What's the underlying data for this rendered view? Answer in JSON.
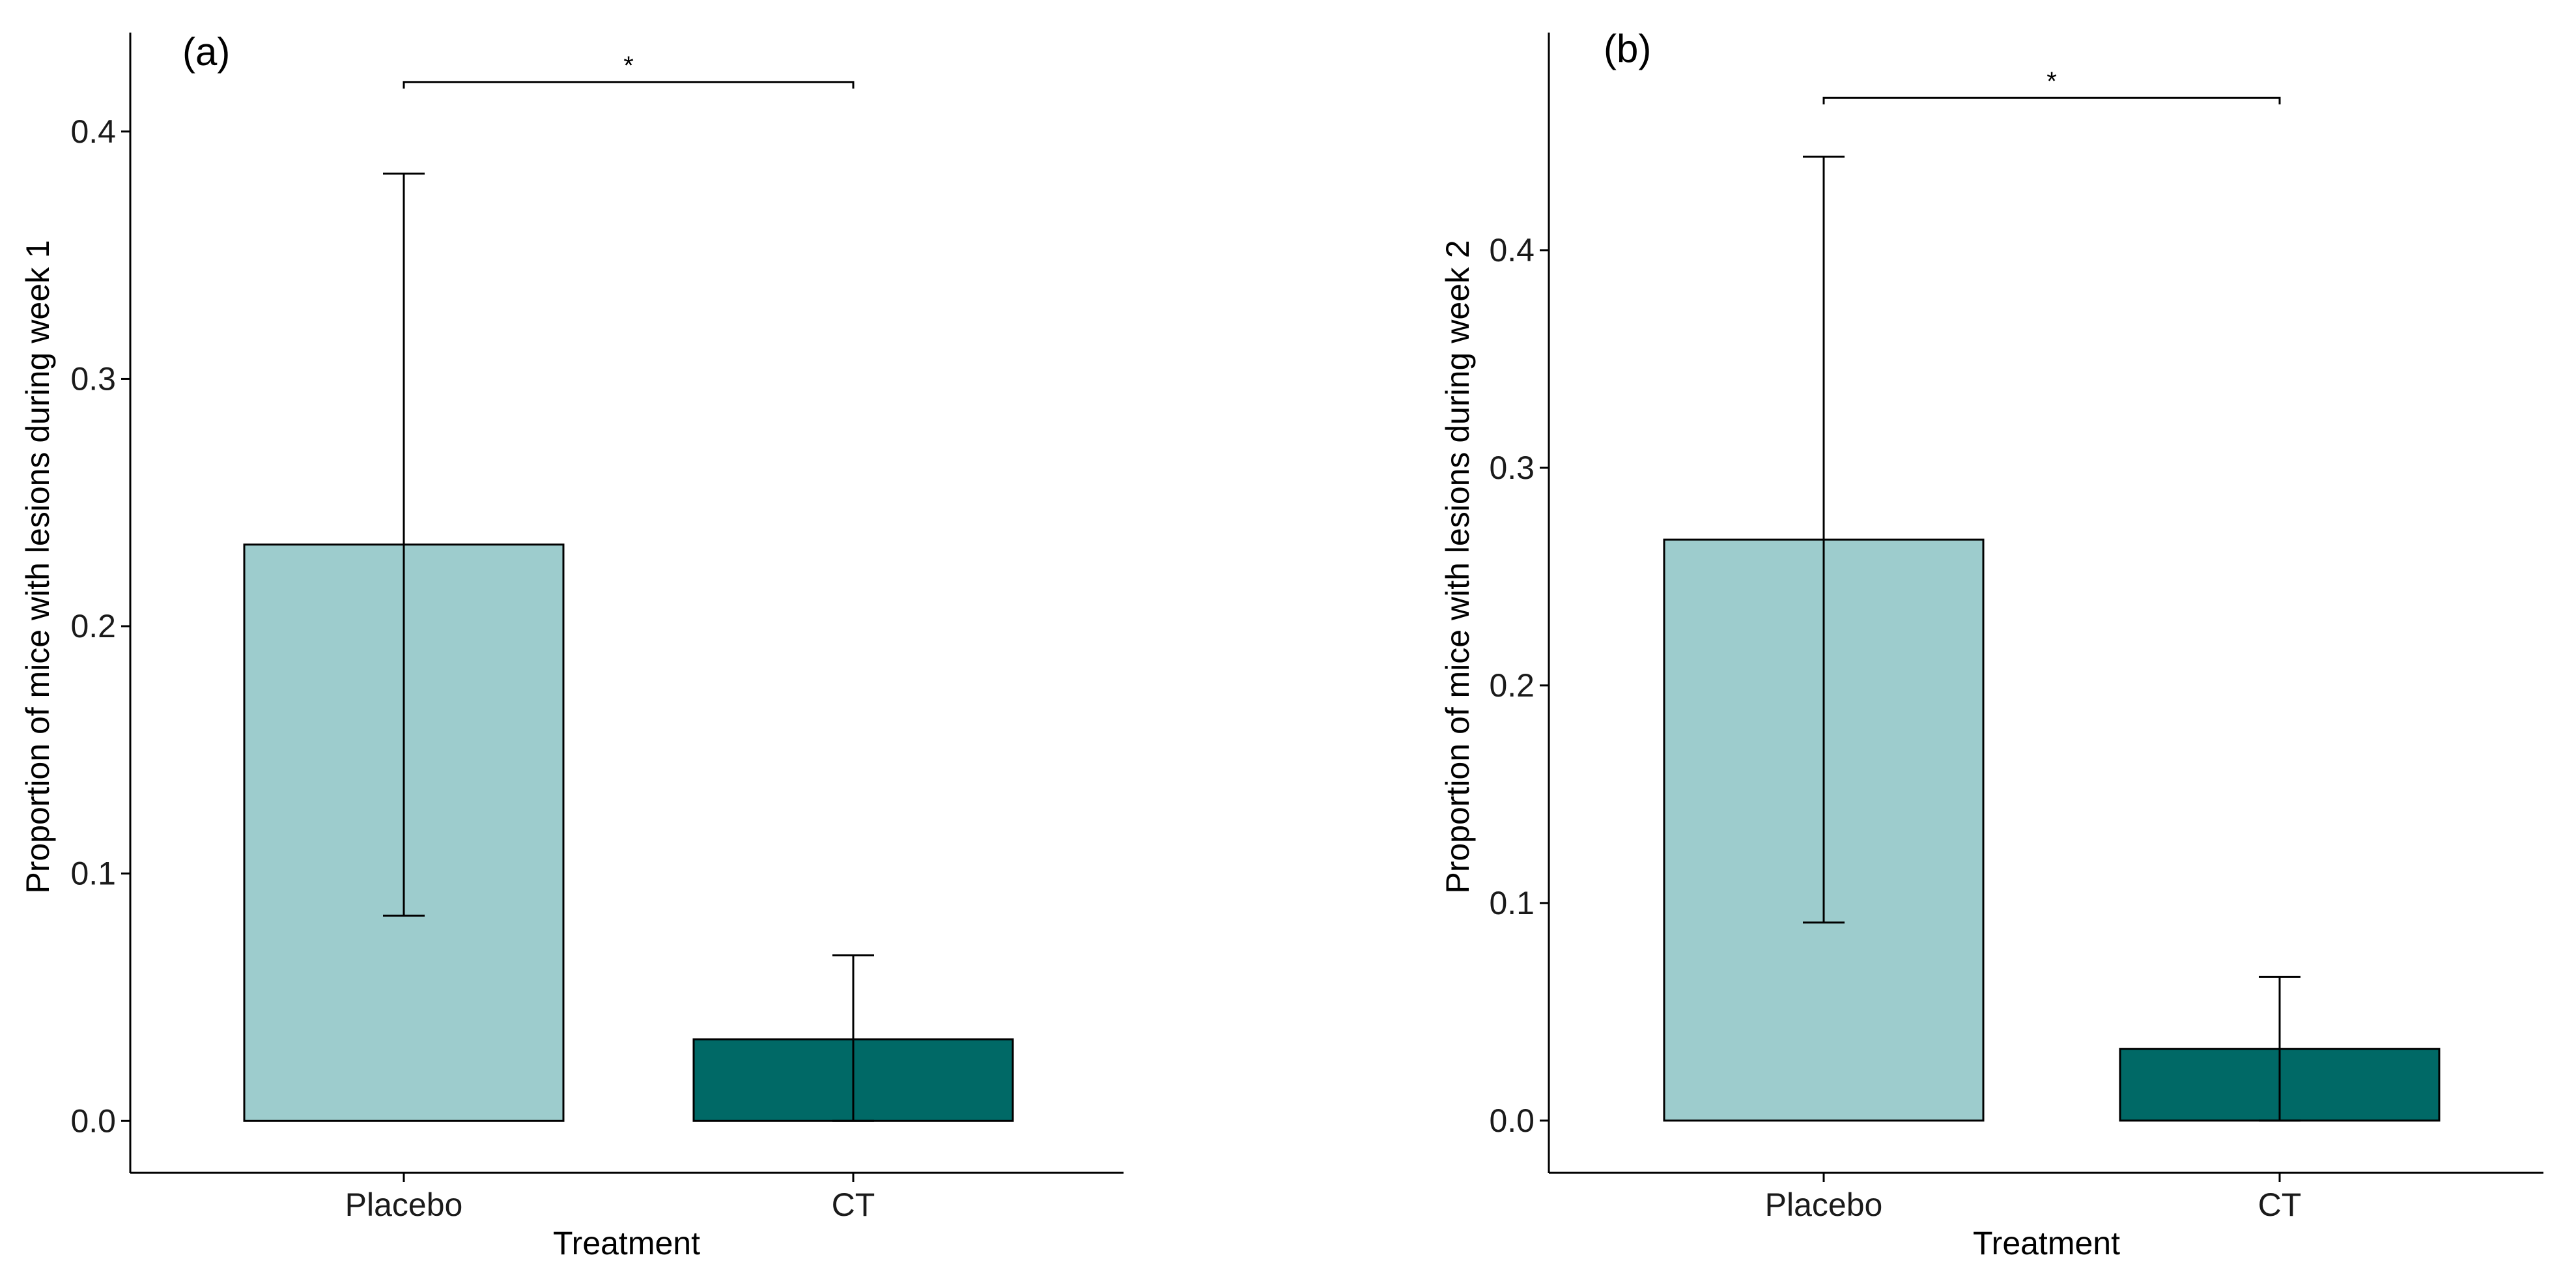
{
  "colors": {
    "placebo": "#9dcccd",
    "ct": "#006966",
    "axis": "#000000"
  },
  "chart_data": [
    {
      "type": "bar",
      "panel_label": "(a)",
      "title": "",
      "xlabel": "Treatment",
      "ylabel": "Proportion of mice with lesions during week 1",
      "categories": [
        "Placebo",
        "CT"
      ],
      "values": [
        0.233,
        0.033
      ],
      "error_low": [
        0.083,
        0.0
      ],
      "error_high": [
        0.383,
        0.067
      ],
      "ylim": [
        -0.021,
        0.44
      ],
      "yticks": [
        0.0,
        0.1,
        0.2,
        0.3,
        0.4
      ],
      "ytick_labels": [
        "0.0",
        "0.1",
        "0.2",
        "0.3",
        "0.4"
      ],
      "significance": {
        "label": "*",
        "between": [
          "Placebo",
          "CT"
        ],
        "y": 0.42
      }
    },
    {
      "type": "bar",
      "panel_label": "(b)",
      "title": "",
      "xlabel": "Treatment",
      "ylabel": "Proportion of mice with lesions during week 2",
      "categories": [
        "Placebo",
        "CT"
      ],
      "values": [
        0.267,
        0.033
      ],
      "error_low": [
        0.091,
        0.0
      ],
      "error_high": [
        0.443,
        0.066
      ],
      "ylim": [
        -0.024,
        0.5
      ],
      "yticks": [
        0.0,
        0.1,
        0.2,
        0.3,
        0.4
      ],
      "ytick_labels": [
        "0.0",
        "0.1",
        "0.2",
        "0.3",
        "0.4"
      ],
      "significance": {
        "label": "*",
        "between": [
          "Placebo",
          "CT"
        ],
        "y": 0.47
      }
    }
  ]
}
